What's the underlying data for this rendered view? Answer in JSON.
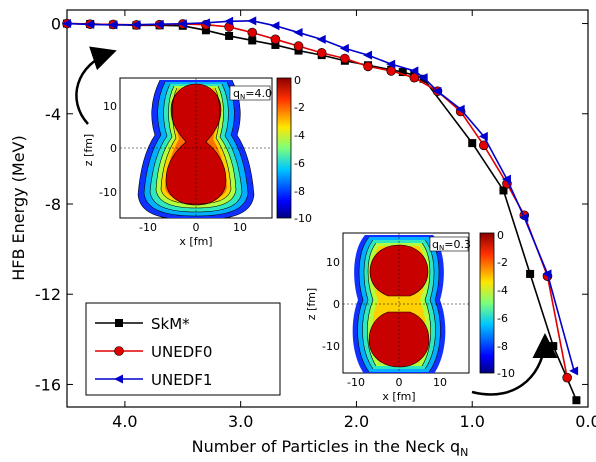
{
  "chart_data": {
    "type": "line",
    "xlabel": "Number of Particles in the Neck q",
    "xlabel_subscript": "N",
    "ylabel": "HFB Energy (MeV)",
    "xlim": [
      4.5,
      0.0
    ],
    "ylim": [
      -17.0,
      0.6
    ],
    "x_reversed": true,
    "x_ticks": [
      "4.0",
      "3.0",
      "2.0",
      "1.0",
      "0.0"
    ],
    "x_tick_values": [
      4.0,
      3.0,
      2.0,
      1.0,
      0.0
    ],
    "y_ticks": [
      "0",
      "-4",
      "-8",
      "-12",
      "-16"
    ],
    "y_tick_values": [
      0,
      -4,
      -8,
      -12,
      -16
    ],
    "legend_position": "bottom-left",
    "series": [
      {
        "name": "SkM*",
        "color": "#000000",
        "marker": "square",
        "x": [
          4.5,
          4.3,
          4.1,
          3.9,
          3.7,
          3.5,
          3.3,
          3.1,
          2.9,
          2.7,
          2.5,
          2.3,
          2.1,
          1.9,
          1.7,
          1.6,
          1.5,
          1.42,
          1.0,
          0.73,
          0.5,
          0.3,
          0.1
        ],
        "y": [
          0.0,
          -0.02,
          -0.05,
          -0.08,
          -0.08,
          -0.1,
          -0.3,
          -0.55,
          -0.75,
          -0.95,
          -1.2,
          -1.4,
          -1.65,
          -1.85,
          -2.05,
          -2.15,
          -2.3,
          -2.45,
          -5.3,
          -7.4,
          -11.1,
          -14.3,
          -16.7
        ]
      },
      {
        "name": "UNEDF0",
        "color": "#e00000",
        "marker": "circle",
        "x": [
          4.5,
          4.3,
          4.1,
          3.9,
          3.7,
          3.5,
          3.3,
          3.1,
          2.9,
          2.7,
          2.5,
          2.3,
          2.1,
          1.9,
          1.7,
          1.5,
          1.3,
          1.1,
          0.9,
          0.7,
          0.55,
          0.35,
          0.18
        ],
        "y": [
          0.0,
          -0.03,
          -0.04,
          -0.06,
          -0.05,
          -0.02,
          -0.05,
          -0.15,
          -0.4,
          -0.7,
          -1.0,
          -1.3,
          -1.55,
          -1.9,
          -2.1,
          -2.4,
          -3.0,
          -3.9,
          -5.4,
          -7.1,
          -8.5,
          -11.2,
          -15.7
        ]
      },
      {
        "name": "UNEDF1",
        "color": "#0000cc",
        "marker": "triangle-left",
        "x": [
          4.5,
          4.3,
          4.1,
          3.9,
          3.7,
          3.5,
          3.3,
          3.1,
          2.9,
          2.7,
          2.5,
          2.3,
          2.1,
          1.9,
          1.7,
          1.5,
          1.42,
          1.3,
          1.1,
          0.9,
          0.7,
          0.55,
          0.35,
          0.12
        ],
        "y": [
          0.0,
          -0.04,
          -0.06,
          -0.05,
          -0.03,
          -0.01,
          0.03,
          0.1,
          0.12,
          -0.1,
          -0.4,
          -0.7,
          -1.1,
          -1.4,
          -1.8,
          -2.1,
          -2.4,
          -3.0,
          -3.8,
          -5.0,
          -6.9,
          -8.6,
          -11.1,
          -15.4
        ]
      }
    ],
    "insets": [
      {
        "label": "q",
        "label_subscript": "N",
        "label_value": "=4.0",
        "xlabel": "x [fm]",
        "ylabel": "z [fm]",
        "x_ticks": [
          "-10",
          "0",
          "10"
        ],
        "y_ticks": [
          "10",
          "0",
          "-10"
        ],
        "colorbar_ticks": [
          "0",
          "-2",
          "-4",
          "-6",
          "-8",
          "-10"
        ],
        "colorbar_range": [
          -10,
          0
        ]
      },
      {
        "label": "q",
        "label_subscript": "N",
        "label_value": "=0.3",
        "xlabel": "x [fm]",
        "ylabel": "z [fm]",
        "x_ticks": [
          "-10",
          "0",
          "10"
        ],
        "y_ticks": [
          "10",
          "0",
          "-10"
        ],
        "colorbar_ticks": [
          "0",
          "-2",
          "-4",
          "-6",
          "-8",
          "-10"
        ],
        "colorbar_range": [
          -10,
          0
        ]
      }
    ]
  }
}
